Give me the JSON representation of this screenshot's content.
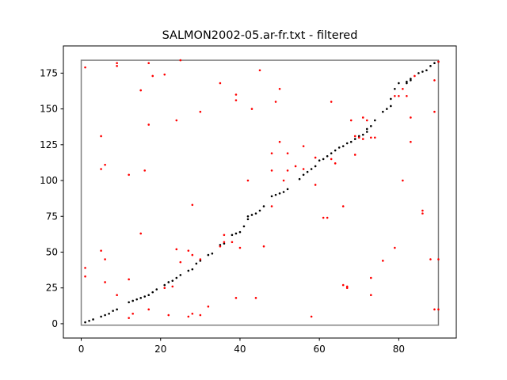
{
  "chart_data": {
    "type": "scatter",
    "title": "SALMON2002-05.ar-fr.txt - filtered",
    "xlabel": "",
    "ylabel": "",
    "xlim": [
      -4.5,
      94.5
    ],
    "ylim": [
      -10,
      194
    ],
    "x_ticks": [
      0,
      20,
      40,
      60,
      80
    ],
    "y_ticks": [
      0,
      25,
      50,
      75,
      100,
      125,
      150,
      175
    ],
    "grid": false,
    "legend": "none",
    "box": {
      "x0": 0,
      "x1": 90,
      "y0": -1,
      "y1": 184,
      "color": "#808080"
    },
    "series": [
      {
        "color": "#000000",
        "points": [
          [
            1,
            1
          ],
          [
            2,
            2
          ],
          [
            3,
            3
          ],
          [
            5,
            5
          ],
          [
            6,
            6
          ],
          [
            7,
            7
          ],
          [
            8,
            9
          ],
          [
            9,
            10
          ],
          [
            12,
            15
          ],
          [
            13,
            16
          ],
          [
            14,
            17
          ],
          [
            15,
            18
          ],
          [
            16,
            19
          ],
          [
            17,
            20
          ],
          [
            18,
            22
          ],
          [
            19,
            24
          ],
          [
            21,
            27
          ],
          [
            22,
            29
          ],
          [
            23,
            30
          ],
          [
            24,
            32
          ],
          [
            25,
            34
          ],
          [
            27,
            37
          ],
          [
            28,
            38
          ],
          [
            29,
            42
          ],
          [
            30,
            44
          ],
          [
            32,
            48
          ],
          [
            33,
            49
          ],
          [
            35,
            55
          ],
          [
            36,
            56
          ],
          [
            38,
            62
          ],
          [
            39,
            63
          ],
          [
            40,
            64
          ],
          [
            41,
            68
          ],
          [
            42,
            73
          ],
          [
            42,
            75
          ],
          [
            43,
            76
          ],
          [
            44,
            77
          ],
          [
            45,
            79
          ],
          [
            46,
            82
          ],
          [
            48,
            89
          ],
          [
            49,
            90
          ],
          [
            50,
            91
          ],
          [
            51,
            92
          ],
          [
            52,
            94
          ],
          [
            55,
            101
          ],
          [
            56,
            104
          ],
          [
            57,
            106
          ],
          [
            58,
            108
          ],
          [
            59,
            110
          ],
          [
            60,
            114
          ],
          [
            61,
            115
          ],
          [
            62,
            117
          ],
          [
            63,
            119
          ],
          [
            64,
            121
          ],
          [
            65,
            123
          ],
          [
            66,
            124
          ],
          [
            67,
            126
          ],
          [
            68,
            127
          ],
          [
            69,
            129
          ],
          [
            70,
            131
          ],
          [
            71,
            132
          ],
          [
            72,
            134
          ],
          [
            72,
            136
          ],
          [
            73,
            138
          ],
          [
            74,
            142
          ],
          [
            76,
            148
          ],
          [
            77,
            150
          ],
          [
            78,
            152
          ],
          [
            78,
            157
          ],
          [
            79,
            164
          ],
          [
            80,
            168
          ],
          [
            82,
            168
          ],
          [
            82,
            169
          ],
          [
            83,
            170
          ],
          [
            83,
            171
          ],
          [
            85,
            175
          ],
          [
            86,
            176
          ],
          [
            87,
            177
          ],
          [
            88,
            180
          ],
          [
            89,
            182
          ],
          [
            90,
            183
          ]
        ]
      },
      {
        "color": "#ff0000",
        "points": [
          [
            1,
            179
          ],
          [
            1,
            39
          ],
          [
            1,
            33
          ],
          [
            5,
            131
          ],
          [
            5,
            108
          ],
          [
            6,
            111
          ],
          [
            5,
            51
          ],
          [
            6,
            45
          ],
          [
            6,
            29
          ],
          [
            9,
            182
          ],
          [
            9,
            180
          ],
          [
            9,
            20
          ],
          [
            12,
            104
          ],
          [
            12,
            31
          ],
          [
            12,
            4
          ],
          [
            13,
            7
          ],
          [
            15,
            163
          ],
          [
            15,
            63
          ],
          [
            16,
            107
          ],
          [
            17,
            182
          ],
          [
            17,
            139
          ],
          [
            17,
            10
          ],
          [
            18,
            173
          ],
          [
            21,
            174
          ],
          [
            21,
            25
          ],
          [
            22,
            6
          ],
          [
            23,
            26
          ],
          [
            24,
            142
          ],
          [
            24,
            52
          ],
          [
            25,
            184
          ],
          [
            25,
            43
          ],
          [
            27,
            51
          ],
          [
            27,
            5
          ],
          [
            28,
            83
          ],
          [
            28,
            48
          ],
          [
            28,
            7
          ],
          [
            30,
            148
          ],
          [
            30,
            45
          ],
          [
            30,
            6
          ],
          [
            32,
            12
          ],
          [
            35,
            168
          ],
          [
            35,
            54
          ],
          [
            36,
            62
          ],
          [
            36,
            57
          ],
          [
            38,
            57
          ],
          [
            39,
            160
          ],
          [
            39,
            156
          ],
          [
            39,
            18
          ],
          [
            40,
            53
          ],
          [
            42,
            100
          ],
          [
            43,
            150
          ],
          [
            44,
            18
          ],
          [
            45,
            177
          ],
          [
            46,
            54
          ],
          [
            48,
            119
          ],
          [
            48,
            107
          ],
          [
            48,
            82
          ],
          [
            49,
            155
          ],
          [
            50,
            164
          ],
          [
            50,
            127
          ],
          [
            51,
            100
          ],
          [
            52,
            119
          ],
          [
            52,
            107
          ],
          [
            54,
            110
          ],
          [
            56,
            124
          ],
          [
            56,
            108
          ],
          [
            58,
            5
          ],
          [
            59,
            116
          ],
          [
            59,
            97
          ],
          [
            61,
            74
          ],
          [
            62,
            74
          ],
          [
            63,
            155
          ],
          [
            63,
            115
          ],
          [
            64,
            112
          ],
          [
            66,
            82
          ],
          [
            66,
            27
          ],
          [
            67,
            26
          ],
          [
            67,
            25
          ],
          [
            68,
            142
          ],
          [
            69,
            131
          ],
          [
            69,
            118
          ],
          [
            70,
            130
          ],
          [
            71,
            144
          ],
          [
            71,
            129
          ],
          [
            72,
            142
          ],
          [
            73,
            130
          ],
          [
            73,
            32
          ],
          [
            73,
            20
          ],
          [
            74,
            130
          ],
          [
            76,
            44
          ],
          [
            79,
            159
          ],
          [
            79,
            53
          ],
          [
            80,
            159
          ],
          [
            81,
            164
          ],
          [
            81,
            100
          ],
          [
            82,
            159
          ],
          [
            83,
            144
          ],
          [
            83,
            127
          ],
          [
            84,
            173
          ],
          [
            86,
            79
          ],
          [
            86,
            77
          ],
          [
            88,
            45
          ],
          [
            89,
            170
          ],
          [
            89,
            148
          ],
          [
            89,
            10
          ],
          [
            90,
            183
          ],
          [
            90,
            45
          ],
          [
            90,
            10
          ]
        ]
      }
    ]
  }
}
